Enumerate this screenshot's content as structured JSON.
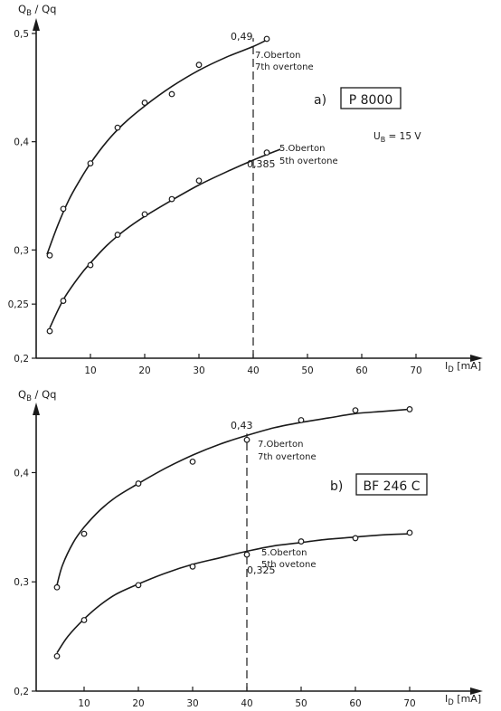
{
  "chart_data": [
    {
      "type": "line",
      "panel_label": "a)",
      "device": "P 8000",
      "condition": "U",
      "condition_sub": "B",
      "condition_value": " = 15 V",
      "ylabel": "Q",
      "ylabel_sub": "B",
      "ylabel_rest": " / Qq",
      "xlabel": "I",
      "xlabel_sub": "D",
      "xlabel_unit": " [mA]",
      "xlim": [
        0,
        75
      ],
      "ylim": [
        0.2,
        0.5
      ],
      "xticks": [
        10,
        20,
        30,
        40,
        50,
        60,
        70
      ],
      "yticks": [
        {
          "v": 0.2,
          "label": "0,2"
        },
        {
          "v": 0.25,
          "label": "0,25"
        },
        {
          "v": 0.3,
          "label": "0,3"
        },
        {
          "v": 0.4,
          "label": "0,4"
        },
        {
          "v": 0.5,
          "label": "0,5"
        }
      ],
      "marker_line_x": 40,
      "series": [
        {
          "label_line1": "7.Oberton",
          "label_line2": "7th overtone",
          "points": [
            [
              2.5,
              0.295
            ],
            [
              5,
              0.338
            ],
            [
              10,
              0.38
            ],
            [
              15,
              0.413
            ],
            [
              20,
              0.436
            ],
            [
              25,
              0.444
            ],
            [
              30,
              0.471
            ],
            [
              42.5,
              0.495
            ]
          ],
          "curve": [
            [
              2,
              0.296
            ],
            [
              4,
              0.323
            ],
            [
              6,
              0.346
            ],
            [
              8,
              0.364
            ],
            [
              10,
              0.38
            ],
            [
              13,
              0.4
            ],
            [
              16,
              0.416
            ],
            [
              20,
              0.433
            ],
            [
              25,
              0.451
            ],
            [
              30,
              0.466
            ],
            [
              35,
              0.478
            ],
            [
              40,
              0.488
            ],
            [
              42.5,
              0.494
            ]
          ],
          "value_label": "0,49",
          "value_label_x": 40
        },
        {
          "label_line1": "5.Oberton",
          "label_line2": "5th overtone",
          "points": [
            [
              2.5,
              0.225
            ],
            [
              5,
              0.253
            ],
            [
              10,
              0.286
            ],
            [
              15,
              0.314
            ],
            [
              20,
              0.333
            ],
            [
              25,
              0.347
            ],
            [
              30,
              0.364
            ],
            [
              42.5,
              0.39
            ]
          ],
          "curve": [
            [
              2.5,
              0.228
            ],
            [
              5,
              0.254
            ],
            [
              8,
              0.276
            ],
            [
              10,
              0.288
            ],
            [
              13,
              0.304
            ],
            [
              16,
              0.317
            ],
            [
              20,
              0.331
            ],
            [
              25,
              0.346
            ],
            [
              30,
              0.36
            ],
            [
              35,
              0.372
            ],
            [
              40,
              0.383
            ],
            [
              45,
              0.393
            ]
          ],
          "value_label": "0,385",
          "value_label_x": 40
        }
      ]
    },
    {
      "type": "line",
      "panel_label": "b)",
      "device": "BF 246 C",
      "ylabel": "Q",
      "ylabel_sub": "B",
      "ylabel_rest": " / Qq",
      "xlabel": "I",
      "xlabel_sub": "D",
      "xlabel_unit": " [mA]",
      "xlim": [
        0,
        75
      ],
      "ylim": [
        0.2,
        0.46
      ],
      "xticks": [
        10,
        20,
        30,
        40,
        50,
        60,
        70
      ],
      "yticks": [
        {
          "v": 0.2,
          "label": "0,2"
        },
        {
          "v": 0.3,
          "label": "0,3"
        },
        {
          "v": 0.4,
          "label": "0,4"
        }
      ],
      "marker_line_x": 40,
      "series": [
        {
          "label_line1": "7.Oberton",
          "label_line2": "7th overtone",
          "points": [
            [
              5,
              0.295
            ],
            [
              10,
              0.344
            ],
            [
              20,
              0.39
            ],
            [
              30,
              0.41
            ],
            [
              40,
              0.43
            ],
            [
              50,
              0.448
            ],
            [
              60,
              0.457
            ],
            [
              70,
              0.458
            ]
          ],
          "curve": [
            [
              5,
              0.297
            ],
            [
              6,
              0.315
            ],
            [
              8,
              0.336
            ],
            [
              10,
              0.35
            ],
            [
              13,
              0.366
            ],
            [
              16,
              0.378
            ],
            [
              20,
              0.39
            ],
            [
              25,
              0.404
            ],
            [
              30,
              0.416
            ],
            [
              35,
              0.426
            ],
            [
              40,
              0.434
            ],
            [
              45,
              0.441
            ],
            [
              50,
              0.446
            ],
            [
              55,
              0.45
            ],
            [
              60,
              0.454
            ],
            [
              65,
              0.456
            ],
            [
              70,
              0.458
            ]
          ],
          "value_label": "0,43",
          "value_label_x": 40
        },
        {
          "label_line1": "5.Oberton",
          "label_line2": "5th ovetone",
          "points": [
            [
              5,
              0.232
            ],
            [
              10,
              0.265
            ],
            [
              20,
              0.297
            ],
            [
              30,
              0.314
            ],
            [
              40,
              0.325
            ],
            [
              50,
              0.337
            ],
            [
              60,
              0.34
            ],
            [
              70,
              0.345
            ]
          ],
          "curve": [
            [
              5,
              0.235
            ],
            [
              7,
              0.25
            ],
            [
              10,
              0.266
            ],
            [
              13,
              0.279
            ],
            [
              16,
              0.289
            ],
            [
              20,
              0.298
            ],
            [
              25,
              0.308
            ],
            [
              30,
              0.316
            ],
            [
              35,
              0.322
            ],
            [
              40,
              0.328
            ],
            [
              45,
              0.333
            ],
            [
              50,
              0.336
            ],
            [
              55,
              0.339
            ],
            [
              60,
              0.341
            ],
            [
              65,
              0.343
            ],
            [
              70,
              0.344
            ]
          ],
          "value_label": "0,325",
          "value_label_x": 40
        }
      ]
    }
  ]
}
